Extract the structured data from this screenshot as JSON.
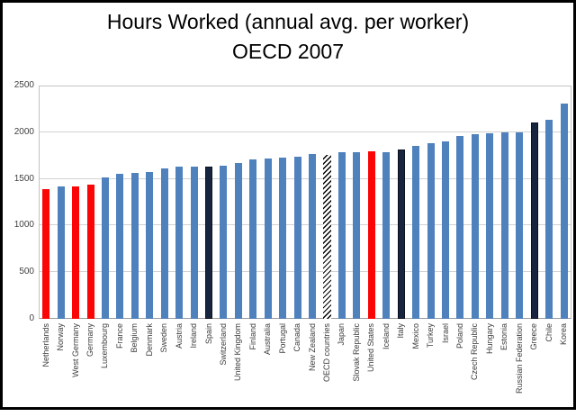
{
  "title": {
    "line1": "Hours Worked  (annual avg. per worker)",
    "line2": "OECD 2007"
  },
  "chart_data": {
    "type": "bar",
    "title": "Hours Worked (annual avg. per worker) OECD 2007",
    "xlabel": "",
    "ylabel": "",
    "ylim": [
      0,
      2500
    ],
    "yticks": [
      0,
      500,
      1000,
      1500,
      2000,
      2500
    ],
    "grid": true,
    "legend_position": "none",
    "categories": [
      "Netherlands",
      "Norway",
      "West Germany",
      "Germany",
      "Luxembourg",
      "France",
      "Belgium",
      "Denmark",
      "Sweden",
      "Austria",
      "Ireland",
      "Spain",
      "Switzerland",
      "United Kingdom",
      "Finland",
      "Australia",
      "Portugal",
      "Canada",
      "New Zealand",
      "OECD countries",
      "Japan",
      "Slovak Republic",
      "United States",
      "Iceland",
      "Italy",
      "Mexico",
      "Turkey",
      "Israel",
      "Poland",
      "Czech Republic",
      "Hungary",
      "Estonia",
      "Russian Federation",
      "Greece",
      "Chile",
      "Korea"
    ],
    "values": [
      1390,
      1420,
      1420,
      1435,
      1520,
      1555,
      1560,
      1570,
      1615,
      1630,
      1630,
      1635,
      1645,
      1670,
      1710,
      1720,
      1730,
      1740,
      1765,
      1760,
      1785,
      1790,
      1795,
      1790,
      1810,
      1850,
      1885,
      1900,
      1955,
      1980,
      1985,
      2000,
      2000,
      2105,
      2130,
      2305
    ],
    "bar_styles": [
      "red",
      "blue",
      "red",
      "red",
      "blue",
      "blue",
      "blue",
      "blue",
      "blue",
      "blue",
      "blue",
      "dark",
      "blue",
      "blue",
      "blue",
      "blue",
      "blue",
      "blue",
      "blue",
      "hatched",
      "blue",
      "blue",
      "red",
      "blue",
      "dark",
      "blue",
      "blue",
      "blue",
      "blue",
      "blue",
      "blue",
      "blue",
      "blue",
      "dark",
      "blue",
      "blue"
    ],
    "colors": {
      "blue": "#4f81bd",
      "red": "#fb0606",
      "dark": "#17253e",
      "hatch_foreground": "#000000",
      "hatch_background": "#ffffff",
      "gridline": "#d2d2d2",
      "plot_border": "#c3c3c3"
    }
  }
}
